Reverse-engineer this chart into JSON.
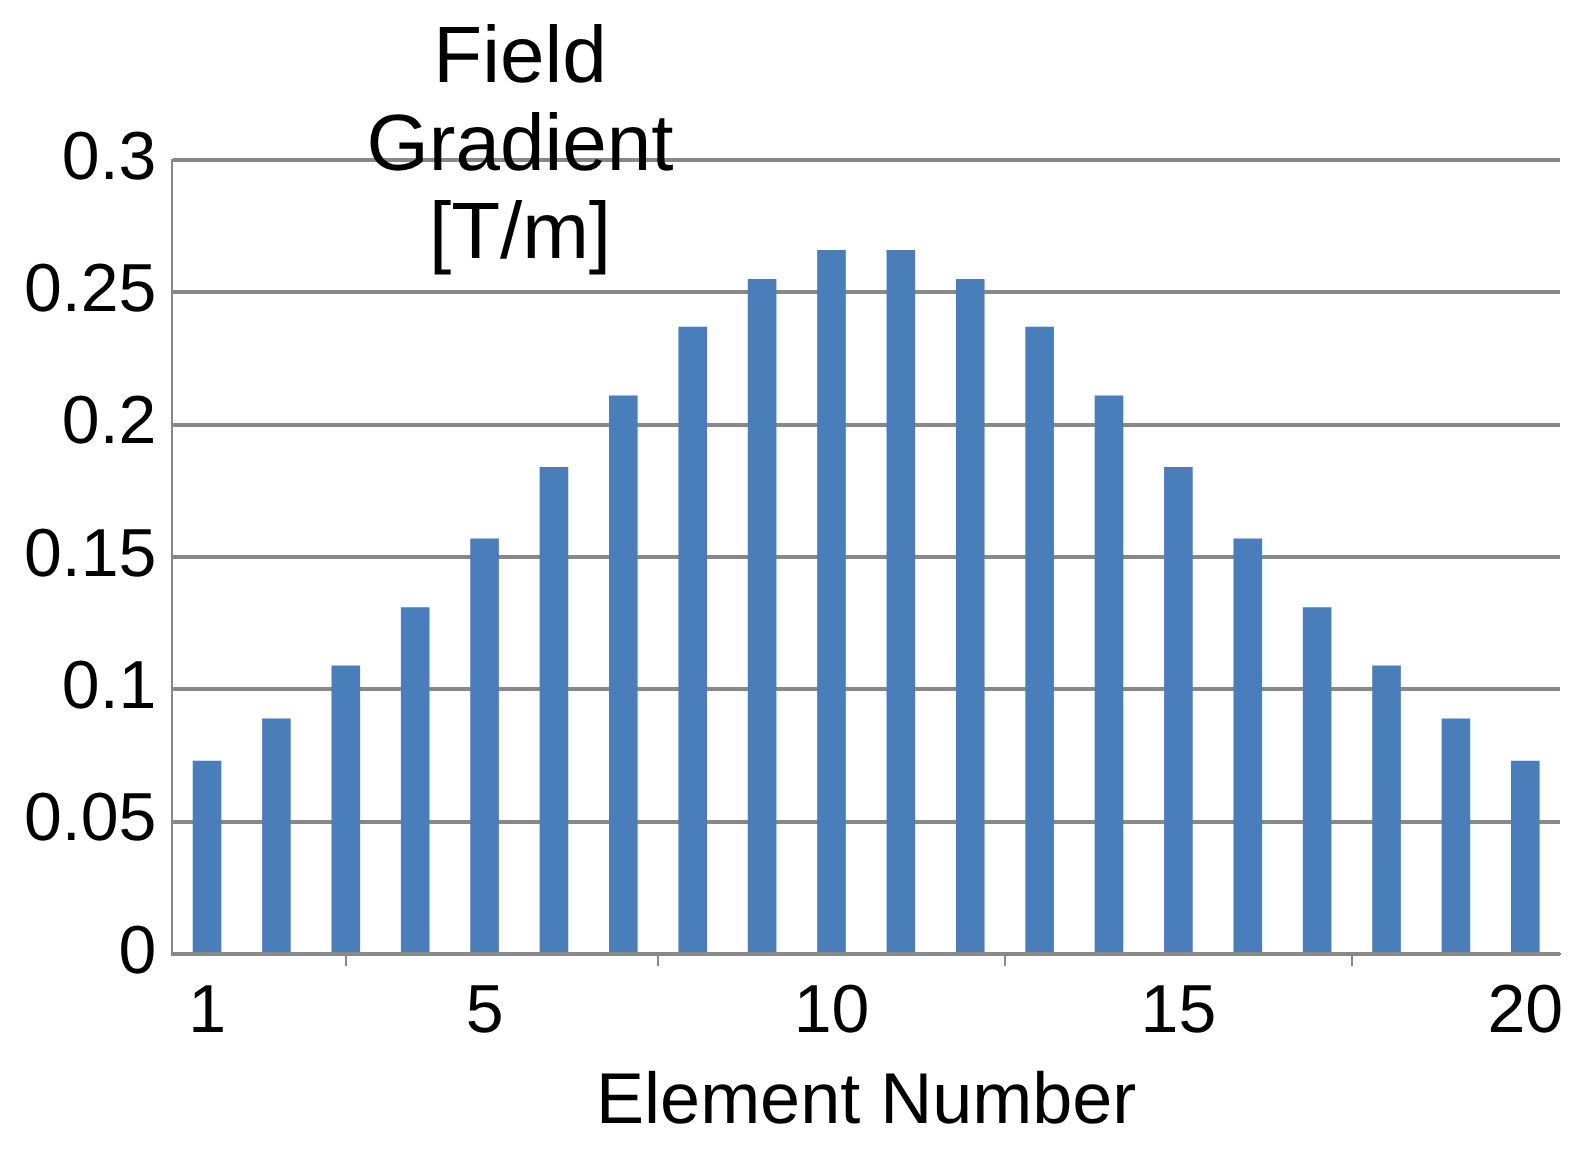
{
  "chart_data": {
    "type": "bar",
    "ylabel": "Field Gradient [T/m]",
    "xlabel": "Element Number",
    "x": [
      1,
      2,
      3,
      4,
      5,
      6,
      7,
      8,
      9,
      10,
      11,
      12,
      13,
      14,
      15,
      16,
      17,
      18,
      19,
      20
    ],
    "values": [
      0.073,
      0.089,
      0.109,
      0.131,
      0.157,
      0.184,
      0.211,
      0.237,
      0.255,
      0.266,
      0.266,
      0.255,
      0.237,
      0.211,
      0.184,
      0.157,
      0.131,
      0.109,
      0.089,
      0.073
    ],
    "color": "#4a7ebb",
    "xlim": [
      0.5,
      20.5
    ],
    "xticks": [
      1,
      5,
      10,
      15,
      20
    ],
    "ylim": [
      0,
      0.3
    ],
    "yticks": [
      0,
      0.05,
      0.1,
      0.15,
      0.2,
      0.25,
      0.3
    ],
    "grid": "y",
    "legend": false
  }
}
